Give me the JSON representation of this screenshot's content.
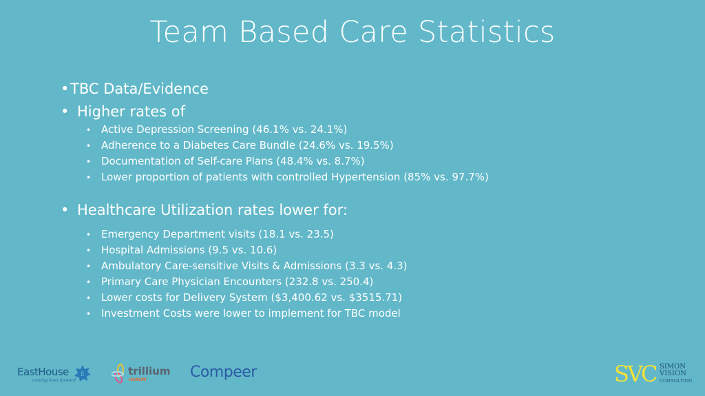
{
  "title": "Team Based Care Statistics",
  "sections": [
    {
      "label": "TBC Data/Evidence",
      "items": []
    },
    {
      "label": "Higher rates of",
      "items": [
        "Active Depression Screening (46.1% vs. 24.1%)",
        "Adherence to a Diabetes Care Bundle (24.6% vs. 19.5%)",
        "Documentation of Self-care Plans (48.4% vs. 8.7%)",
        "Lower proportion of patients with controlled Hypertension (85% vs. 97.7%)"
      ]
    },
    {
      "label": "Healthcare Utilization rates lower for:",
      "items": [
        "Emergency Department visits (18.1 vs. 23.5)",
        "Hospital Admissions (9.5 vs. 10.6)",
        "Ambulatory Care-sensitive Visits & Admissions (3.3 vs. 4.3)",
        "Primary Care Physician Encounters (232.8 vs. 250.4)",
        "Lower costs for Delivery System ($3,400.62 vs. $3515.71)",
        "Investment Costs were lower to implement for TBC model"
      ]
    }
  ],
  "bullet": "•",
  "logos": {
    "easthouse": {
      "name": "EastHouse",
      "tagline": "moving lives forward"
    },
    "trillium": {
      "name": "trillium",
      "sub": "HEALTH"
    },
    "compeer": {
      "name": "Compeer"
    },
    "svc": {
      "mark": "SVC",
      "line1": "SIMON",
      "line2": "VISION",
      "line3": "CONSULTING"
    }
  },
  "colors": {
    "background": "#62b8c9",
    "text": "#ffffff",
    "navy": "#1f4e79",
    "yellow": "#f2e13a"
  }
}
